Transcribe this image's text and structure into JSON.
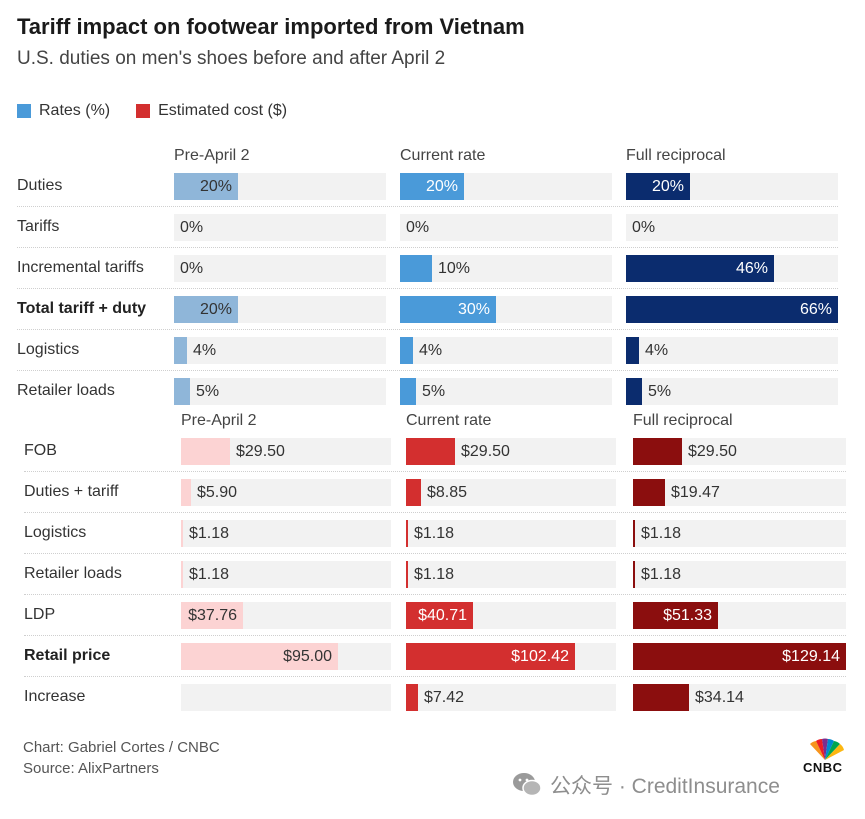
{
  "title": "Tariff impact on footwear imported from Vietnam",
  "subtitle": "U.S. duties on men's shoes before and after April 2",
  "legend": [
    {
      "label": "Rates (%)",
      "color": "#4a9ad9"
    },
    {
      "label": "Estimated cost ($)",
      "color": "#d32f2f"
    }
  ],
  "colors": {
    "rates": [
      "#8fb6d9",
      "#4a9ad9",
      "#0b2c6e"
    ],
    "costs": [
      "#fcd3d3",
      "#d32f2f",
      "#8b0e0e"
    ],
    "track": "#f2f2f2"
  },
  "chart_data": [
    {
      "type": "bar",
      "title": "Rates (%)",
      "unit": "%",
      "columns": [
        "Pre-April 2",
        "Current rate",
        "Full reciprocal"
      ],
      "rows": [
        "Duties",
        "Tariffs",
        "Incremental tariffs",
        "Total tariff + duty",
        "Logistics",
        "Retailer loads"
      ],
      "bold_rows": [
        "Total tariff + duty"
      ],
      "values": [
        [
          20,
          20,
          20
        ],
        [
          0,
          0,
          0
        ],
        [
          0,
          10,
          46
        ],
        [
          20,
          30,
          66
        ],
        [
          4,
          4,
          4
        ],
        [
          5,
          5,
          5
        ]
      ],
      "labels": [
        [
          "20%",
          "20%",
          "20%"
        ],
        [
          "0%",
          "0%",
          "0%"
        ],
        [
          "0%",
          "10%",
          "46%"
        ],
        [
          "20%",
          "30%",
          "66%"
        ],
        [
          "4%",
          "4%",
          "4%"
        ],
        [
          "5%",
          "5%",
          "5%"
        ]
      ],
      "xlim": [
        0,
        66
      ]
    },
    {
      "type": "bar",
      "title": "Estimated cost ($)",
      "unit": "$",
      "columns": [
        "Pre-April 2",
        "Current rate",
        "Full reciprocal"
      ],
      "rows": [
        "FOB",
        "Duties + tariff",
        "Logistics",
        "Retailer loads",
        "LDP",
        "Retail price",
        "Increase"
      ],
      "bold_rows": [
        "Retail price"
      ],
      "values": [
        [
          29.5,
          29.5,
          29.5
        ],
        [
          5.9,
          8.85,
          19.47
        ],
        [
          1.18,
          1.18,
          1.18
        ],
        [
          1.18,
          1.18,
          1.18
        ],
        [
          37.76,
          40.71,
          51.33
        ],
        [
          95.0,
          102.42,
          129.14
        ],
        [
          null,
          7.42,
          34.14
        ]
      ],
      "labels": [
        [
          "$29.50",
          "$29.50",
          "$29.50"
        ],
        [
          "$5.90",
          "$8.85",
          "$19.47"
        ],
        [
          "$1.18",
          "$1.18",
          "$1.18"
        ],
        [
          "$1.18",
          "$1.18",
          "$1.18"
        ],
        [
          "$37.76",
          "$40.71",
          "$51.33"
        ],
        [
          "$95.00",
          "$102.42",
          "$129.14"
        ],
        [
          "",
          "$7.42",
          "$34.14"
        ]
      ],
      "xlim": [
        0,
        129.14
      ]
    }
  ],
  "footer": {
    "credit": "Chart: Gabriel Cortes / CNBC",
    "source": "Source: AlixPartners",
    "logo_text": "CNBC"
  },
  "watermark": "公众号 · CreditInsurance"
}
